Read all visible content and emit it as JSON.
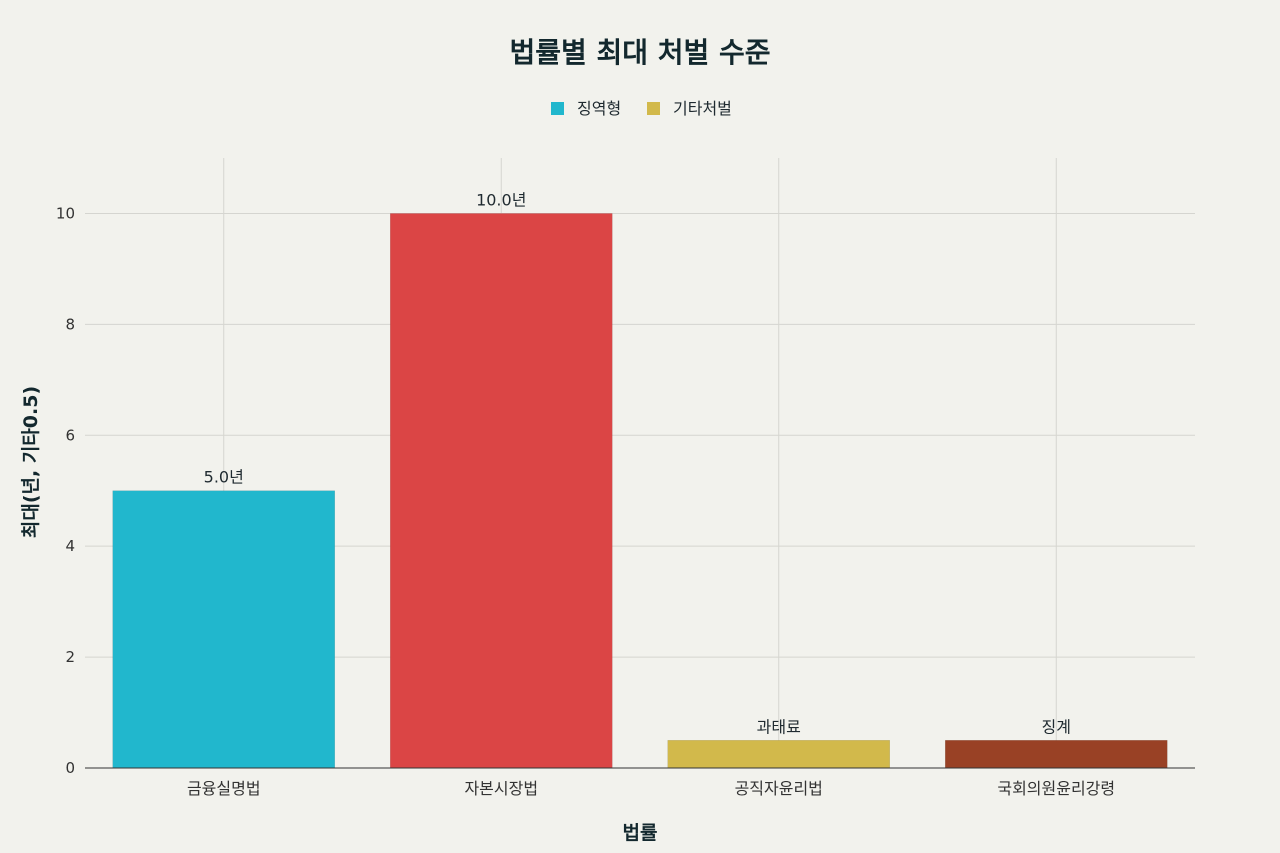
{
  "chart_data": {
    "type": "bar",
    "title": "법률별 최대 처벌 수준",
    "xlabel": "법률",
    "ylabel": "최대(년, 기타0.5)",
    "ylim": [
      0,
      11
    ],
    "yticks": [
      0,
      2,
      4,
      6,
      8,
      10
    ],
    "grid": true,
    "legend": {
      "placement": "top-center",
      "entries": [
        {
          "name": "징역형",
          "color": "#21b7cd"
        },
        {
          "name": "기타처벌",
          "color": "#d2b94b"
        }
      ]
    },
    "categories": [
      "금융실명법",
      "자본시장법",
      "공직자윤리법",
      "국회의원윤리강령"
    ],
    "values": [
      5.0,
      10.0,
      0.5,
      0.5
    ],
    "data_labels": [
      "5.0년",
      "10.0년",
      "과태료",
      "징계"
    ],
    "colors": [
      "#21b7cd",
      "#db4545",
      "#d2b94b",
      "#994125"
    ]
  }
}
